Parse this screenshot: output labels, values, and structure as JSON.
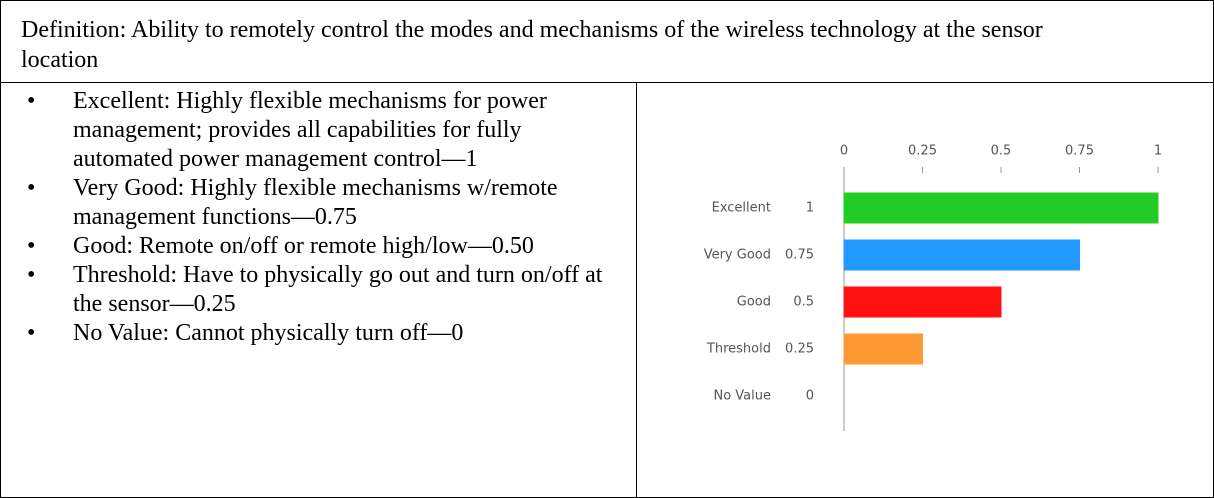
{
  "definition": "Definition: Ability to remotely control the modes and mechanisms of the wireless technology at the sensor location",
  "bullets": [
    "Excellent: Highly flexible mechanisms for power management; provides all capabilities for fully automated power management control—1",
    "Very Good: Highly flexible mechanisms w/remote management functions—0.75",
    "Good: Remote on/off or remote high/low—0.50",
    "Threshold: Have to physically go out and turn on/off at the sensor—0.25",
    "No Value: Cannot physically turn off—0"
  ],
  "chart_data": {
    "type": "hbar",
    "categories": [
      "Excellent",
      "Very Good",
      "Good",
      "Threshold",
      "No Value"
    ],
    "values": [
      1,
      0.75,
      0.5,
      0.25,
      0
    ],
    "colors": [
      "#22cc22",
      "#2299ff",
      "#ff1111",
      "#ff9933",
      "#333399"
    ],
    "xlim": [
      0,
      1
    ],
    "xticks": [
      0,
      0.25,
      0.5,
      0.75,
      1
    ]
  }
}
